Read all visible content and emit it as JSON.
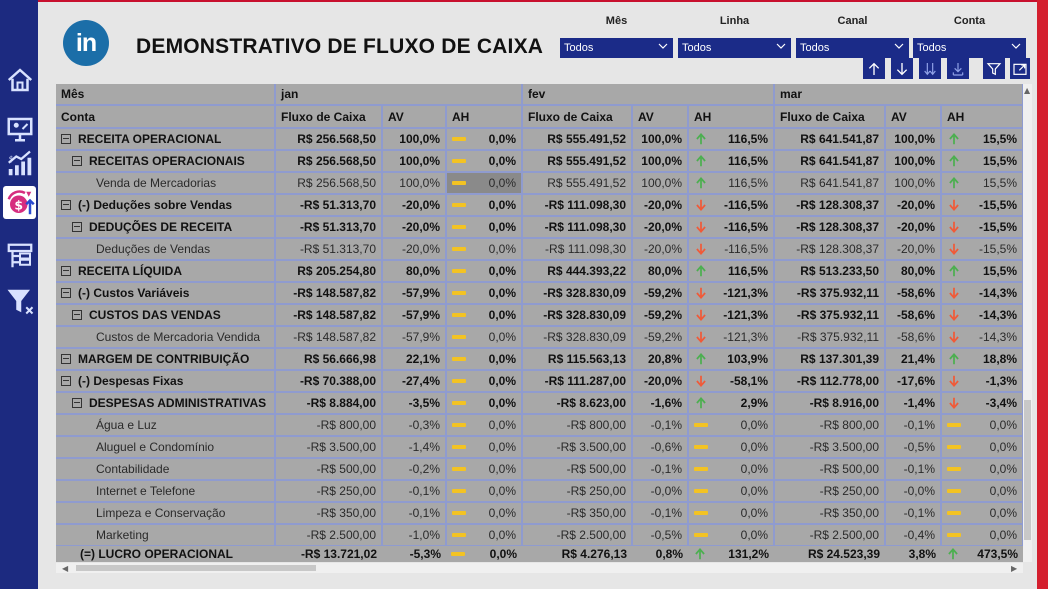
{
  "header": {
    "logo": "in",
    "title": "DEMONSTRATIVO DE FLUXO DE CAIXA"
  },
  "filters": [
    {
      "label": "Mês",
      "value": "Todos"
    },
    {
      "label": "Linha",
      "value": "Todos"
    },
    {
      "label": "Canal",
      "value": "Todos"
    },
    {
      "label": "Conta",
      "value": "Todos"
    }
  ],
  "toolbar": [
    "arrow-up-icon",
    "arrow-down-icon",
    "expand-all-down-icon",
    "expand-hierarchy-icon",
    "filter-icon",
    "focus-mode-icon"
  ],
  "sidebar": [
    "home-icon",
    "presentation-icon",
    "growth-chart-icon",
    "money-cycle-icon",
    "hierarchy-icon",
    "clear-filter-icon"
  ],
  "table": {
    "row_header_label": "Mês",
    "row_header_sub": "Conta",
    "months": [
      "jan",
      "fev",
      "mar"
    ],
    "columns": [
      "Fluxo de Caixa",
      "AV",
      "AH"
    ],
    "rows": [
      {
        "label": "RECEITA OPERACIONAL",
        "level": 0,
        "toggle": true,
        "style": "bold",
        "cells": [
          [
            "R$ 256.568,50",
            "100,0%",
            "dash",
            "0,0%"
          ],
          [
            "R$ 555.491,52",
            "100,0%",
            "up",
            "116,5%"
          ],
          [
            "R$ 641.541,87",
            "100,0%",
            "up",
            "15,5%"
          ]
        ]
      },
      {
        "label": "RECEITAS OPERACIONAIS",
        "level": 1,
        "toggle": true,
        "style": "bold",
        "cells": [
          [
            "R$ 256.568,50",
            "100,0%",
            "dash",
            "0,0%"
          ],
          [
            "R$ 555.491,52",
            "100,0%",
            "up",
            "116,5%"
          ],
          [
            "R$ 641.541,87",
            "100,0%",
            "up",
            "15,5%"
          ]
        ]
      },
      {
        "label": "Venda de Mercadorias",
        "level": 2,
        "toggle": false,
        "style": "detail",
        "cells": [
          [
            "R$ 256.568,50",
            "100,0%",
            "dash",
            "0,0%"
          ],
          [
            "R$ 555.491,52",
            "100,0%",
            "up",
            "116,5%"
          ],
          [
            "R$ 641.541,87",
            "100,0%",
            "up",
            "15,5%"
          ]
        ]
      },
      {
        "label": "(-) Deduções sobre Vendas",
        "level": 0,
        "toggle": true,
        "style": "bold",
        "cells": [
          [
            "-R$ 51.313,70",
            "-20,0%",
            "dash",
            "0,0%"
          ],
          [
            "-R$ 111.098,30",
            "-20,0%",
            "down",
            "-116,5%"
          ],
          [
            "-R$ 128.308,37",
            "-20,0%",
            "down",
            "-15,5%"
          ]
        ]
      },
      {
        "label": "DEDUÇÕES DE RECEITA",
        "level": 1,
        "toggle": true,
        "style": "bold",
        "cells": [
          [
            "-R$ 51.313,70",
            "-20,0%",
            "dash",
            "0,0%"
          ],
          [
            "-R$ 111.098,30",
            "-20,0%",
            "down",
            "-116,5%"
          ],
          [
            "-R$ 128.308,37",
            "-20,0%",
            "down",
            "-15,5%"
          ]
        ]
      },
      {
        "label": "Deduções de Vendas",
        "level": 2,
        "toggle": false,
        "style": "detail",
        "cells": [
          [
            "-R$ 51.313,70",
            "-20,0%",
            "dash",
            "0,0%"
          ],
          [
            "-R$ 111.098,30",
            "-20,0%",
            "down",
            "-116,5%"
          ],
          [
            "-R$ 128.308,37",
            "-20,0%",
            "down",
            "-15,5%"
          ]
        ]
      },
      {
        "label": "RECEITA LÍQUIDA",
        "level": 0,
        "toggle": true,
        "style": "bold",
        "cells": [
          [
            "R$ 205.254,80",
            "80,0%",
            "dash",
            "0,0%"
          ],
          [
            "R$ 444.393,22",
            "80,0%",
            "up",
            "116,5%"
          ],
          [
            "R$ 513.233,50",
            "80,0%",
            "up",
            "15,5%"
          ]
        ]
      },
      {
        "label": "(-) Custos Variáveis",
        "level": 0,
        "toggle": true,
        "style": "bold",
        "cells": [
          [
            "-R$ 148.587,82",
            "-57,9%",
            "dash",
            "0,0%"
          ],
          [
            "-R$ 328.830,09",
            "-59,2%",
            "down",
            "-121,3%"
          ],
          [
            "-R$ 375.932,11",
            "-58,6%",
            "down",
            "-14,3%"
          ]
        ]
      },
      {
        "label": "CUSTOS DAS VENDAS",
        "level": 1,
        "toggle": true,
        "style": "bold",
        "cells": [
          [
            "-R$ 148.587,82",
            "-57,9%",
            "dash",
            "0,0%"
          ],
          [
            "-R$ 328.830,09",
            "-59,2%",
            "down",
            "-121,3%"
          ],
          [
            "-R$ 375.932,11",
            "-58,6%",
            "down",
            "-14,3%"
          ]
        ]
      },
      {
        "label": "Custos de Mercadoria Vendida",
        "level": 2,
        "toggle": false,
        "style": "detail",
        "cells": [
          [
            "-R$ 148.587,82",
            "-57,9%",
            "dash",
            "0,0%"
          ],
          [
            "-R$ 328.830,09",
            "-59,2%",
            "down",
            "-121,3%"
          ],
          [
            "-R$ 375.932,11",
            "-58,6%",
            "down",
            "-14,3%"
          ]
        ]
      },
      {
        "label": "MARGEM DE CONTRIBUIÇÃO",
        "level": 0,
        "toggle": true,
        "style": "bold",
        "cells": [
          [
            "R$ 56.666,98",
            "22,1%",
            "dash",
            "0,0%"
          ],
          [
            "R$ 115.563,13",
            "20,8%",
            "up",
            "103,9%"
          ],
          [
            "R$ 137.301,39",
            "21,4%",
            "up",
            "18,8%"
          ]
        ]
      },
      {
        "label": "(-) Despesas Fixas",
        "level": 0,
        "toggle": true,
        "style": "bold",
        "cells": [
          [
            "-R$ 70.388,00",
            "-27,4%",
            "dash",
            "0,0%"
          ],
          [
            "-R$ 111.287,00",
            "-20,0%",
            "down",
            "-58,1%"
          ],
          [
            "-R$ 112.778,00",
            "-17,6%",
            "down",
            "-1,3%"
          ]
        ]
      },
      {
        "label": "DESPESAS ADMINISTRATIVAS",
        "level": 1,
        "toggle": true,
        "style": "bold",
        "cells": [
          [
            "-R$ 8.884,00",
            "-3,5%",
            "dash",
            "0,0%"
          ],
          [
            "-R$ 8.623,00",
            "-1,6%",
            "up",
            "2,9%"
          ],
          [
            "-R$ 8.916,00",
            "-1,4%",
            "down",
            "-3,4%"
          ]
        ]
      },
      {
        "label": "Água e Luz",
        "level": 2,
        "toggle": false,
        "style": "detail",
        "cells": [
          [
            "-R$ 800,00",
            "-0,3%",
            "dash",
            "0,0%"
          ],
          [
            "-R$ 800,00",
            "-0,1%",
            "dash",
            "0,0%"
          ],
          [
            "-R$ 800,00",
            "-0,1%",
            "dash",
            "0,0%"
          ]
        ]
      },
      {
        "label": "Aluguel e Condomínio",
        "level": 2,
        "toggle": false,
        "style": "detail",
        "cells": [
          [
            "-R$ 3.500,00",
            "-1,4%",
            "dash",
            "0,0%"
          ],
          [
            "-R$ 3.500,00",
            "-0,6%",
            "dash",
            "0,0%"
          ],
          [
            "-R$ 3.500,00",
            "-0,5%",
            "dash",
            "0,0%"
          ]
        ]
      },
      {
        "label": "Contabilidade",
        "level": 2,
        "toggle": false,
        "style": "detail",
        "cells": [
          [
            "-R$ 500,00",
            "-0,2%",
            "dash",
            "0,0%"
          ],
          [
            "-R$ 500,00",
            "-0,1%",
            "dash",
            "0,0%"
          ],
          [
            "-R$ 500,00",
            "-0,1%",
            "dash",
            "0,0%"
          ]
        ]
      },
      {
        "label": "Internet e Telefone",
        "level": 2,
        "toggle": false,
        "style": "detail",
        "cells": [
          [
            "-R$ 250,00",
            "-0,1%",
            "dash",
            "0,0%"
          ],
          [
            "-R$ 250,00",
            "-0,0%",
            "dash",
            "0,0%"
          ],
          [
            "-R$ 250,00",
            "-0,0%",
            "dash",
            "0,0%"
          ]
        ]
      },
      {
        "label": "Limpeza e Conservação",
        "level": 2,
        "toggle": false,
        "style": "detail",
        "cells": [
          [
            "-R$ 350,00",
            "-0,1%",
            "dash",
            "0,0%"
          ],
          [
            "-R$ 350,00",
            "-0,1%",
            "dash",
            "0,0%"
          ],
          [
            "-R$ 350,00",
            "-0,1%",
            "dash",
            "0,0%"
          ]
        ]
      },
      {
        "label": "Marketing",
        "level": 2,
        "toggle": false,
        "style": "detail",
        "cells": [
          [
            "-R$ 2.500,00",
            "-1,0%",
            "dash",
            "0,0%"
          ],
          [
            "-R$ 2.500,00",
            "-0,5%",
            "dash",
            "0,0%"
          ],
          [
            "-R$ 2.500,00",
            "-0,4%",
            "dash",
            "0,0%"
          ]
        ]
      }
    ],
    "total": {
      "label": "(=) LUCRO OPERACIONAL",
      "cells": [
        [
          "-R$ 13.721,02",
          "-5,3%",
          "dash",
          "0,0%"
        ],
        [
          "R$ 4.276,13",
          "0,8%",
          "up",
          "131,2%"
        ],
        [
          "R$ 24.523,39",
          "3,8%",
          "up",
          "473,5%"
        ]
      ]
    },
    "selected_cell": "Venda de Mercadorias · jan · AH"
  },
  "colors": {
    "navy": "#1c2a80",
    "accent_red": "#d41f2e",
    "up": "#4caf50",
    "down": "#f05a38",
    "neutral": "#f3c323",
    "grid": "#8f9bcf",
    "row_bg": "#a8a8a8"
  }
}
